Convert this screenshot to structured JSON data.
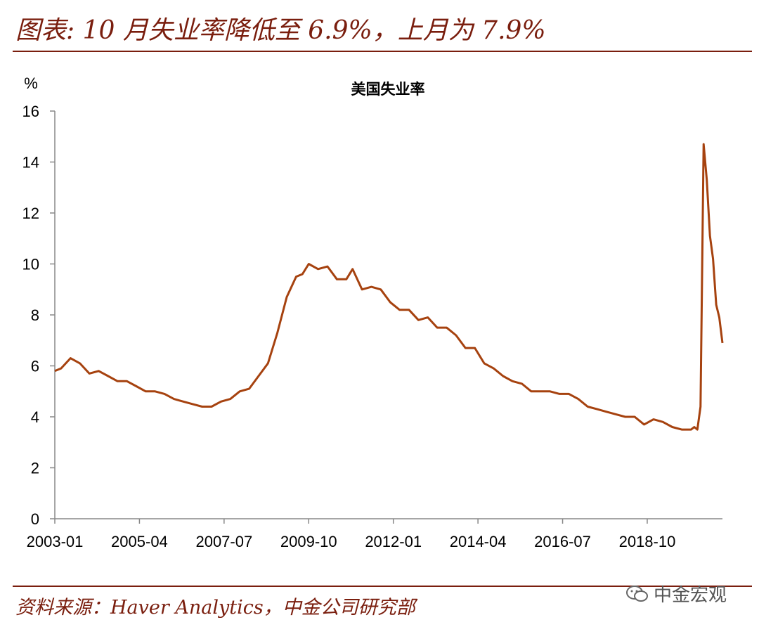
{
  "header": {
    "title": "图表: 10 月失业率降低至 6.9%，上月为 7.9%"
  },
  "footer": {
    "source": "资料来源：Haver Analytics，中金公司研究部",
    "watermark": "中金宏观"
  },
  "colors": {
    "accent": "#7a1e0e",
    "line": "#a6420f"
  },
  "chart_data": {
    "type": "line",
    "title": "美国失业率",
    "ylabel": "%",
    "xlabel": "",
    "ylim": [
      0,
      16
    ],
    "yticks": [
      0,
      2,
      4,
      6,
      8,
      10,
      12,
      14,
      16
    ],
    "xlim": [
      "2003-01",
      "2020-10"
    ],
    "xticks": [
      "2003-01",
      "2005-04",
      "2007-07",
      "2009-10",
      "2012-01",
      "2014-04",
      "2016-07",
      "2018-10"
    ],
    "grid": false,
    "legend": "none",
    "series": [
      {
        "values": [
          [
            "2003-01",
            5.8
          ],
          [
            "2003-03",
            5.9
          ],
          [
            "2003-06",
            6.3
          ],
          [
            "2003-09",
            6.1
          ],
          [
            "2003-12",
            5.7
          ],
          [
            "2004-03",
            5.8
          ],
          [
            "2004-06",
            5.6
          ],
          [
            "2004-09",
            5.4
          ],
          [
            "2004-12",
            5.4
          ],
          [
            "2005-03",
            5.2
          ],
          [
            "2005-06",
            5.0
          ],
          [
            "2005-09",
            5.0
          ],
          [
            "2005-12",
            4.9
          ],
          [
            "2006-03",
            4.7
          ],
          [
            "2006-06",
            4.6
          ],
          [
            "2006-09",
            4.5
          ],
          [
            "2006-12",
            4.4
          ],
          [
            "2007-03",
            4.4
          ],
          [
            "2007-06",
            4.6
          ],
          [
            "2007-09",
            4.7
          ],
          [
            "2007-12",
            5.0
          ],
          [
            "2008-03",
            5.1
          ],
          [
            "2008-06",
            5.6
          ],
          [
            "2008-09",
            6.1
          ],
          [
            "2008-12",
            7.3
          ],
          [
            "2009-03",
            8.7
          ],
          [
            "2009-06",
            9.5
          ],
          [
            "2009-08",
            9.6
          ],
          [
            "2009-10",
            10.0
          ],
          [
            "2010-01",
            9.8
          ],
          [
            "2010-04",
            9.9
          ],
          [
            "2010-07",
            9.4
          ],
          [
            "2010-10",
            9.4
          ],
          [
            "2010-12",
            9.8
          ],
          [
            "2011-03",
            9.0
          ],
          [
            "2011-06",
            9.1
          ],
          [
            "2011-09",
            9.0
          ],
          [
            "2011-12",
            8.5
          ],
          [
            "2012-03",
            8.2
          ],
          [
            "2012-06",
            8.2
          ],
          [
            "2012-09",
            7.8
          ],
          [
            "2012-12",
            7.9
          ],
          [
            "2013-03",
            7.5
          ],
          [
            "2013-06",
            7.5
          ],
          [
            "2013-09",
            7.2
          ],
          [
            "2013-12",
            6.7
          ],
          [
            "2014-03",
            6.7
          ],
          [
            "2014-06",
            6.1
          ],
          [
            "2014-09",
            5.9
          ],
          [
            "2014-12",
            5.6
          ],
          [
            "2015-03",
            5.4
          ],
          [
            "2015-06",
            5.3
          ],
          [
            "2015-09",
            5.0
          ],
          [
            "2015-12",
            5.0
          ],
          [
            "2016-03",
            5.0
          ],
          [
            "2016-06",
            4.9
          ],
          [
            "2016-09",
            4.9
          ],
          [
            "2016-12",
            4.7
          ],
          [
            "2017-03",
            4.4
          ],
          [
            "2017-06",
            4.3
          ],
          [
            "2017-09",
            4.2
          ],
          [
            "2017-12",
            4.1
          ],
          [
            "2018-03",
            4.0
          ],
          [
            "2018-06",
            4.0
          ],
          [
            "2018-09",
            3.7
          ],
          [
            "2018-12",
            3.9
          ],
          [
            "2019-03",
            3.8
          ],
          [
            "2019-06",
            3.6
          ],
          [
            "2019-09",
            3.5
          ],
          [
            "2019-12",
            3.5
          ],
          [
            "2020-01",
            3.6
          ],
          [
            "2020-02",
            3.5
          ],
          [
            "2020-03",
            4.4
          ],
          [
            "2020-04",
            14.7
          ],
          [
            "2020-05",
            13.3
          ],
          [
            "2020-06",
            11.1
          ],
          [
            "2020-07",
            10.2
          ],
          [
            "2020-08",
            8.4
          ],
          [
            "2020-09",
            7.9
          ],
          [
            "2020-10",
            6.9
          ]
        ]
      }
    ]
  }
}
